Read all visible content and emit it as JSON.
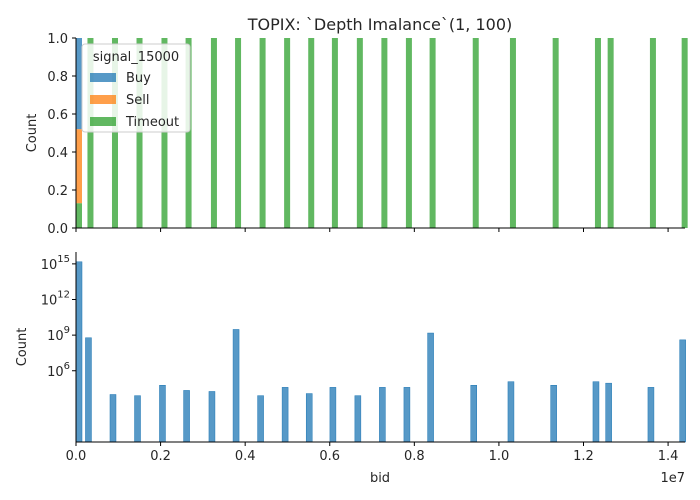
{
  "chart_data": [
    {
      "type": "bar",
      "title": "TOPIX: `Depth Imalance`(1, 100)",
      "xlabel": "",
      "ylabel": "Count",
      "xlim": [
        0,
        14400000
      ],
      "ylim": [
        0,
        1.0
      ],
      "yticks": [
        "0.0",
        "0.2",
        "0.4",
        "0.6",
        "0.8",
        "1.0"
      ],
      "ytick_values": [
        0,
        0.2,
        0.4,
        0.6,
        0.8,
        1.0
      ],
      "stacked": true,
      "grid": false,
      "legend": {
        "title": "signal_15000",
        "placement": "top-left",
        "entries": [
          {
            "label": "Buy",
            "color": "#1f77b4"
          },
          {
            "label": "Sell",
            "color": "#ff7f0e"
          },
          {
            "label": "Timeout",
            "color": "#2ca02c"
          }
        ]
      },
      "series": [
        {
          "name": "Buy",
          "color": "#1f77b4",
          "bars": [
            {
              "x": 0,
              "y0": 0.52,
              "y1": 1.0
            }
          ]
        },
        {
          "name": "Sell",
          "color": "#ff7f0e",
          "bars": [
            {
              "x": 0,
              "y0": 0.13,
              "y1": 0.52
            }
          ]
        },
        {
          "name": "Timeout",
          "color": "#2ca02c",
          "bars": [
            {
              "x": 0,
              "y0": 0,
              "y1": 0.13
            },
            {
              "x": 200000,
              "y0": 0,
              "y1": 1
            },
            {
              "x": 780000,
              "y0": 0,
              "y1": 1
            },
            {
              "x": 1360000,
              "y0": 0,
              "y1": 1
            },
            {
              "x": 1950000,
              "y0": 0,
              "y1": 1
            },
            {
              "x": 2520000,
              "y0": 0,
              "y1": 1
            },
            {
              "x": 3120000,
              "y0": 0,
              "y1": 1
            },
            {
              "x": 3690000,
              "y0": 0,
              "y1": 1
            },
            {
              "x": 4270000,
              "y0": 0,
              "y1": 1
            },
            {
              "x": 4850000,
              "y0": 0,
              "y1": 1
            },
            {
              "x": 5420000,
              "y0": 0,
              "y1": 1
            },
            {
              "x": 5980000,
              "y0": 0,
              "y1": 1
            },
            {
              "x": 6570000,
              "y0": 0,
              "y1": 1
            },
            {
              "x": 7150000,
              "y0": 0,
              "y1": 1
            },
            {
              "x": 7730000,
              "y0": 0,
              "y1": 1
            },
            {
              "x": 8290000,
              "y0": 0,
              "y1": 1
            },
            {
              "x": 9310000,
              "y0": 0,
              "y1": 1
            },
            {
              "x": 10190000,
              "y0": 0,
              "y1": 1
            },
            {
              "x": 11200000,
              "y0": 0,
              "y1": 1
            },
            {
              "x": 12200000,
              "y0": 0,
              "y1": 1
            },
            {
              "x": 12500000,
              "y0": 0,
              "y1": 1
            },
            {
              "x": 13500000,
              "y0": 0,
              "y1": 1
            },
            {
              "x": 14250000,
              "y0": 0,
              "y1": 1
            }
          ]
        }
      ]
    },
    {
      "type": "bar",
      "title": "",
      "xlabel": "bid",
      "ylabel": "Count",
      "xlim": [
        0,
        14400000
      ],
      "xticks": [
        "0.0",
        "0.2",
        "0.4",
        "0.6",
        "0.8",
        "1.0",
        "1.2",
        "1.4"
      ],
      "xtick_values": [
        0,
        2000000,
        4000000,
        6000000,
        8000000,
        10000000,
        12000000,
        14000000
      ],
      "x_offset_label": "1e7",
      "yscale": "log",
      "ylim": [
        1,
        1e+16
      ],
      "yticks": [
        {
          "base": "10",
          "exp": "6",
          "value": 1000000.0
        },
        {
          "base": "10",
          "exp": "9",
          "value": 1000000000.0
        },
        {
          "base": "10",
          "exp": "12",
          "value": 1000000000000.0
        },
        {
          "base": "10",
          "exp": "15",
          "value": 1000000000000000.0
        }
      ],
      "grid": false,
      "series": [
        {
          "name": "",
          "color": "#1f77b4",
          "bars": [
            {
              "x": 0,
              "y": 1500000000000000.0
            },
            {
              "x": 200000,
              "y": 600000000.0
            },
            {
              "x": 780000,
              "y": 10000.0
            },
            {
              "x": 1360000,
              "y": 8000
            },
            {
              "x": 1950000,
              "y": 60000.0
            },
            {
              "x": 2520000,
              "y": 22000.0
            },
            {
              "x": 3120000,
              "y": 18000.0
            },
            {
              "x": 3690000,
              "y": 3000000000.0
            },
            {
              "x": 4270000,
              "y": 8000
            },
            {
              "x": 4850000,
              "y": 40000.0
            },
            {
              "x": 5420000,
              "y": 12000.0
            },
            {
              "x": 5980000,
              "y": 40000.0
            },
            {
              "x": 6570000,
              "y": 8000
            },
            {
              "x": 7150000,
              "y": 40000.0
            },
            {
              "x": 7730000,
              "y": 40000.0
            },
            {
              "x": 8290000,
              "y": 1500000000.0
            },
            {
              "x": 9310000,
              "y": 60000.0
            },
            {
              "x": 10190000,
              "y": 120000.0
            },
            {
              "x": 11200000,
              "y": 60000.0
            },
            {
              "x": 12200000,
              "y": 120000.0
            },
            {
              "x": 12500000,
              "y": 90000.0
            },
            {
              "x": 13500000,
              "y": 40000.0
            },
            {
              "x": 14250000,
              "y": 400000000.0
            }
          ]
        }
      ]
    }
  ]
}
